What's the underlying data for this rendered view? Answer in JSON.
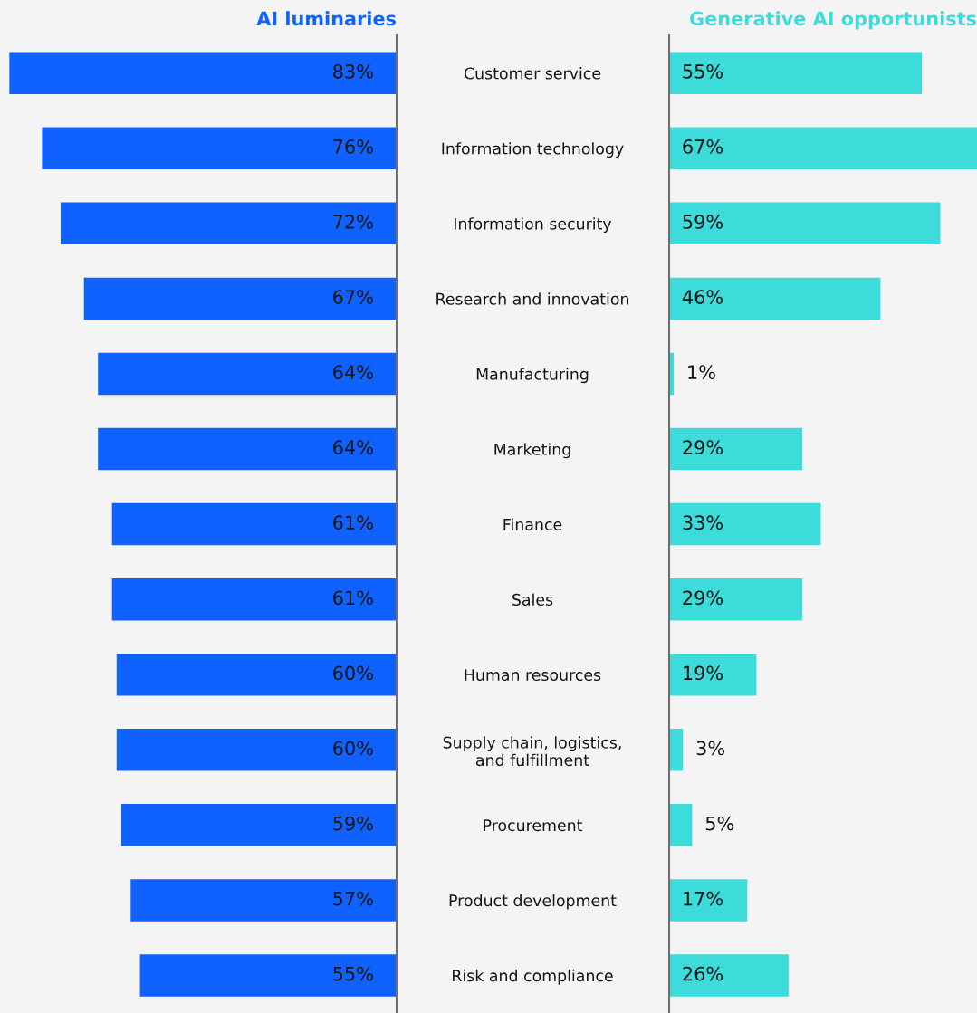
{
  "chart_data": [
    {
      "type": "bar",
      "orientation": "horizontal",
      "title": "AI luminaries",
      "tick_labels": "y",
      "xlim": [
        85,
        0
      ],
      "categories": [
        "Customer service",
        "Information technology",
        "Information security",
        "Research and innovation",
        "Manufacturing",
        "Marketing",
        "Finance",
        "Sales",
        "Human resources",
        "Supply chain, logistics,\nand fulfillment",
        "Procurement",
        "Product development",
        "Risk and compliance"
      ],
      "series": [
        {
          "color": "#0f62fe",
          "values": [
            83,
            76,
            72,
            67,
            64,
            64,
            61,
            61,
            60,
            60,
            59,
            57,
            55
          ],
          "value_labels": [
            "83%",
            "76%",
            "72%",
            "67%",
            "64%",
            "64%",
            "61%",
            "61%",
            "60%",
            "60%",
            "59%",
            "57%",
            "55%"
          ]
        }
      ]
    },
    {
      "type": "bar",
      "orientation": "horizontal",
      "title": "Generative AI opportunists",
      "tick_labels": false,
      "xlim": [
        0,
        67
      ],
      "categories": [
        null,
        null,
        null,
        null,
        null,
        null,
        null,
        null,
        null,
        null,
        null,
        null,
        null
      ],
      "series": [
        {
          "color": "#3ddbd9",
          "values": [
            55,
            67,
            59,
            46,
            1,
            29,
            33,
            29,
            19,
            3,
            5,
            17,
            26
          ],
          "value_labels": [
            "55%",
            "67%",
            "59%",
            "46%",
            "1%",
            "29%",
            "33%",
            "29%",
            "19%",
            "3%",
            "5%",
            "17%",
            "26%"
          ]
        }
      ]
    }
  ]
}
